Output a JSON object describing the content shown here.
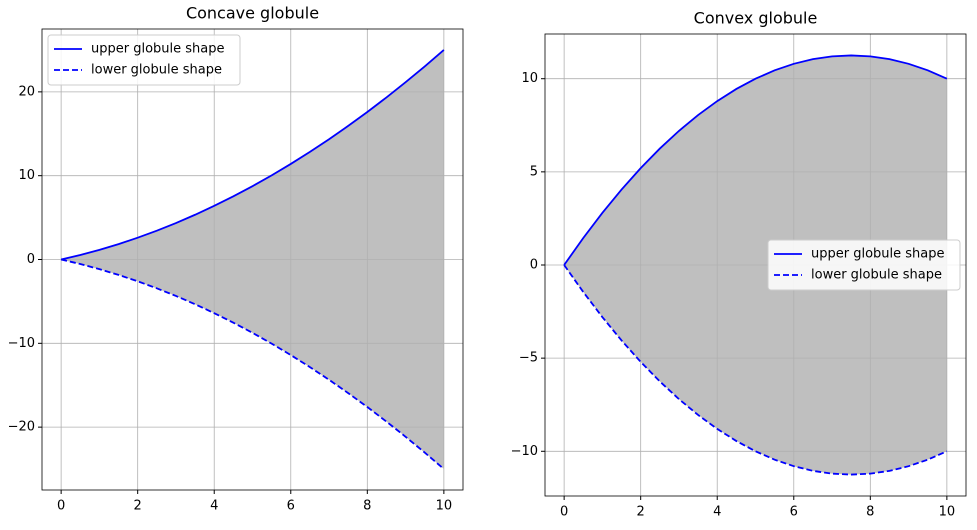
{
  "chart_data": [
    {
      "type": "line",
      "title": "Concave globule",
      "x": [
        0,
        0.5,
        1,
        1.5,
        2,
        2.5,
        3,
        3.5,
        4,
        4.5,
        5,
        5.5,
        6,
        6.5,
        7,
        7.5,
        8,
        8.5,
        9,
        9.5,
        10
      ],
      "series": [
        {
          "name": "upper globule shape",
          "color": "#0000ff",
          "dash": "solid",
          "values": [
            0,
            0.5375,
            1.15,
            1.8375,
            2.6,
            3.4375,
            4.35,
            5.3375,
            6.4,
            7.5375,
            8.75,
            10.0375,
            11.4,
            12.8375,
            14.35,
            15.9375,
            17.6,
            19.3375,
            21.15,
            23.0375,
            25
          ]
        },
        {
          "name": "lower globule shape",
          "color": "#0000ff",
          "dash": "dashed",
          "values": [
            0,
            -0.5375,
            -1.15,
            -1.8375,
            -2.6,
            -3.4375,
            -4.35,
            -5.3375,
            -6.4,
            -7.5375,
            -8.75,
            -10.0375,
            -11.4,
            -12.8375,
            -14.35,
            -15.9375,
            -17.6,
            -19.3375,
            -21.15,
            -23.0375,
            -25
          ]
        }
      ],
      "fill_between": true,
      "fill_color": "#bfbfbf",
      "xlim": [
        -0.5,
        10.5
      ],
      "xticks": [
        0,
        2,
        4,
        6,
        8,
        10
      ],
      "ylim": [
        -27.5,
        27.5
      ],
      "yticks": [
        {
          "value": -20,
          "label": "−20"
        },
        {
          "value": -10,
          "label": "−10"
        },
        0,
        10,
        20
      ],
      "grid": true,
      "legend": "upper left"
    },
    {
      "type": "line",
      "title": "Convex globule",
      "x": [
        0,
        0.5,
        1,
        1.5,
        2,
        2.5,
        3,
        3.5,
        4,
        4.5,
        5,
        5.5,
        6,
        6.5,
        7,
        7.5,
        8,
        8.5,
        9,
        9.5,
        10
      ],
      "series": [
        {
          "name": "upper globule shape",
          "color": "#0000ff",
          "dash": "solid",
          "values": [
            0,
            1.45,
            2.8,
            4.05,
            5.2,
            6.25,
            7.2,
            8.05,
            8.8,
            9.45,
            10,
            10.45,
            10.8,
            11.05,
            11.2,
            11.25,
            11.2,
            11.05,
            10.8,
            10.45,
            10
          ]
        },
        {
          "name": "lower globule shape",
          "color": "#0000ff",
          "dash": "dashed",
          "values": [
            0,
            -1.45,
            -2.8,
            -4.05,
            -5.2,
            -6.25,
            -7.2,
            -8.05,
            -8.8,
            -9.45,
            -10,
            -10.45,
            -10.8,
            -11.05,
            -11.2,
            -11.25,
            -11.2,
            -11.05,
            -10.8,
            -10.45,
            -10
          ]
        }
      ],
      "fill_between": true,
      "fill_color": "#bfbfbf",
      "xlim": [
        -0.5,
        10.5
      ],
      "xticks": [
        0,
        2,
        4,
        6,
        8,
        10
      ],
      "ylim": [
        -12.4,
        12.4
      ],
      "yticks": [
        {
          "value": -10,
          "label": "−10"
        },
        {
          "value": -5,
          "label": "−5"
        },
        0,
        5,
        10
      ],
      "grid": true,
      "legend": "center right"
    }
  ]
}
